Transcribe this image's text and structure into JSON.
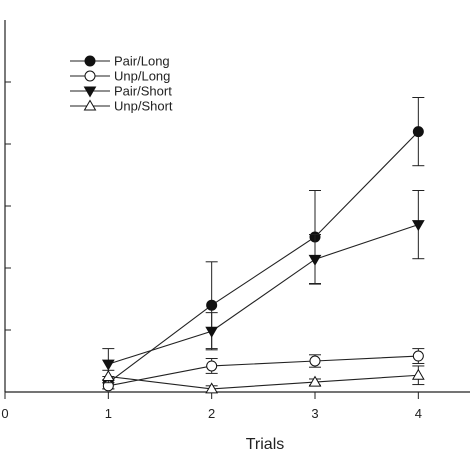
{
  "chart_data": {
    "type": "line",
    "xlabel": "Trials",
    "ylabel": "",
    "title": "",
    "x": [
      1,
      2,
      3,
      4
    ],
    "xticks": [
      0,
      1,
      2,
      3,
      4
    ],
    "xlim": [
      0,
      4.5
    ],
    "ylim": [
      0,
      6.0
    ],
    "legend_position": "top-left",
    "series": [
      {
        "name": "Pair/Long",
        "marker": "circle-filled",
        "values": [
          0.15,
          1.4,
          2.5,
          4.2
        ],
        "errors": [
          0.1,
          0.7,
          0.75,
          0.55
        ]
      },
      {
        "name": "Unp/Long",
        "marker": "circle-open",
        "values": [
          0.1,
          0.42,
          0.5,
          0.58
        ],
        "errors": [
          0.05,
          0.12,
          0.1,
          0.12
        ]
      },
      {
        "name": "Pair/Short",
        "marker": "triangle-down-filled",
        "values": [
          0.45,
          0.98,
          2.14,
          2.7
        ],
        "errors": [
          0.25,
          0.3,
          0.4,
          0.55
        ]
      },
      {
        "name": "Unp/Short",
        "marker": "triangle-up-open",
        "values": [
          0.25,
          0.05,
          0.16,
          0.27
        ],
        "errors": [
          0.1,
          0.05,
          0.05,
          0.15
        ]
      }
    ]
  }
}
